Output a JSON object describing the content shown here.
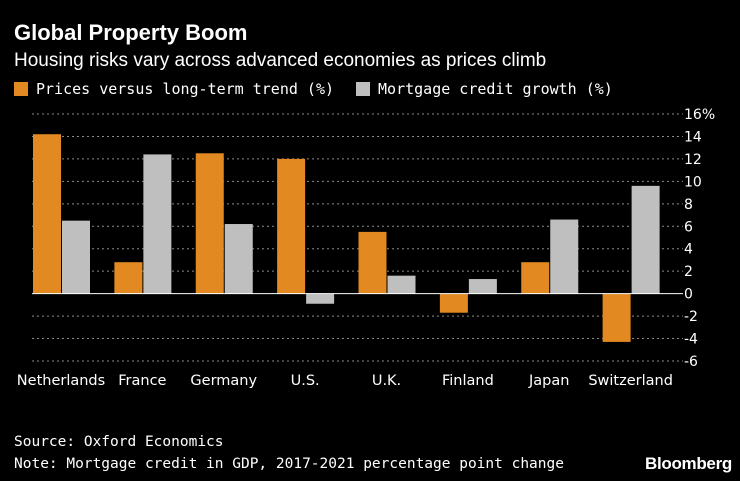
{
  "header": {
    "title": "Global Property Boom",
    "subtitle": "Housing risks vary across advanced economies as prices climb"
  },
  "colors": {
    "background": "#000000",
    "prices": "#e28a21",
    "mortgage": "#bfbfbf",
    "grid": "#8a8a8a"
  },
  "chart_data": {
    "type": "bar",
    "title": "Global Property Boom",
    "categories": [
      "Netherlands",
      "France",
      "Germany",
      "U.S.",
      "U.K.",
      "Finland",
      "Japan",
      "Switzerland"
    ],
    "series": [
      {
        "name": "Prices versus long-term trend (%)",
        "values": [
          14.2,
          2.8,
          12.5,
          12.0,
          5.5,
          -1.7,
          2.8,
          -4.3
        ]
      },
      {
        "name": "Mortgage credit growth (%)",
        "values": [
          6.5,
          12.4,
          6.2,
          -0.9,
          1.6,
          1.3,
          6.6,
          9.6
        ]
      }
    ],
    "ylim": [
      -6,
      16
    ],
    "yticks": [
      "16%",
      "14",
      "12",
      "10",
      "8",
      "6",
      "4",
      "2",
      "0",
      "-2",
      "-4",
      "-6"
    ],
    "ytick_values": [
      16,
      14,
      12,
      10,
      8,
      6,
      4,
      2,
      0,
      -2,
      -4,
      -6
    ],
    "xlabel": "",
    "ylabel": "",
    "grid": true,
    "legend_position": "top-left"
  },
  "footer": {
    "source": "Source: Oxford Economics",
    "note": "Note: Mortgage credit in GDP, 2017-2021 percentage point change",
    "brand": "Bloomberg"
  }
}
